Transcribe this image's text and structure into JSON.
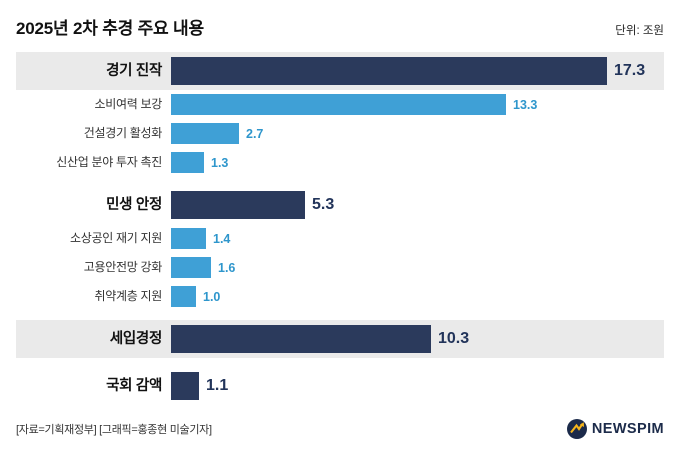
{
  "header": {
    "title": "2025년 2차 추경 주요 내용",
    "unit_label": "단위: 조원"
  },
  "chart_data": {
    "type": "bar",
    "orientation": "horizontal",
    "unit": "조원",
    "title": "2025년 2차 추경 주요 내용",
    "rows": [
      {
        "label": "경기 진작",
        "value": 17.3,
        "value_label": "17.3",
        "level": "main",
        "band": true
      },
      {
        "label": "소비여력 보강",
        "value": 13.3,
        "value_label": "13.3",
        "level": "sub",
        "band": false
      },
      {
        "label": "건설경기 활성화",
        "value": 2.7,
        "value_label": "2.7",
        "level": "sub",
        "band": false
      },
      {
        "label": "신산업 분야 투자 촉진",
        "value": 1.3,
        "value_label": "1.3",
        "level": "sub",
        "band": false
      },
      {
        "label": "민생 안정",
        "value": 5.3,
        "value_label": "5.3",
        "level": "main",
        "band": false
      },
      {
        "label": "소상공인 재기 지원",
        "value": 1.4,
        "value_label": "1.4",
        "level": "sub",
        "band": false
      },
      {
        "label": "고용안전망 강화",
        "value": 1.6,
        "value_label": "1.6",
        "level": "sub",
        "band": false
      },
      {
        "label": "취약계층 지원",
        "value": 1.0,
        "value_label": "1.0",
        "level": "sub",
        "band": false
      },
      {
        "label": "세입경정",
        "value": 10.3,
        "value_label": "10.3",
        "level": "main",
        "band": true
      },
      {
        "label": "국회 감액",
        "value": 1.1,
        "value_label": "1.1",
        "level": "main",
        "band": false
      }
    ],
    "xlim": [
      0,
      18
    ],
    "grid": false,
    "legend": "none"
  },
  "colors": {
    "main_bar": "#2b3a5c",
    "sub_bar": "#3fa0d6",
    "band": "#eaeaea",
    "main_value_text": "#22345a",
    "sub_value_text": "#2e96cc",
    "brand_navy": "#1c2b4a",
    "brand_gold": "#f5b51c"
  },
  "footer": {
    "source": "[자료=기획재정부] [그래픽=홍종현 미술기자]",
    "brand": "NEWSPIM"
  }
}
